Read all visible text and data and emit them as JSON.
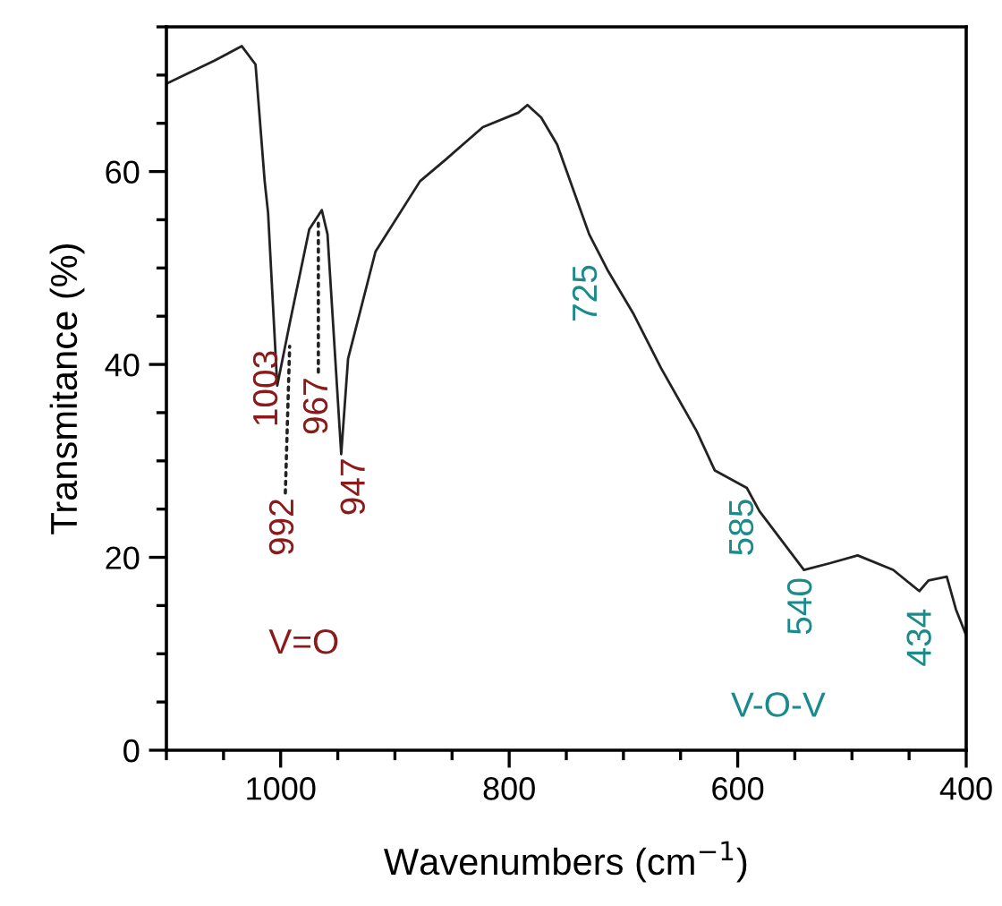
{
  "chart_data": {
    "type": "line",
    "xlabel": "Wavenumbers (cm$^{−1}$)",
    "ylabel": "Transmitance (%)",
    "x": [
      1100,
      1058,
      1034,
      1022,
      1014,
      1011,
      1003,
      992,
      975,
      964,
      959,
      947,
      941,
      917,
      878,
      855,
      823,
      792,
      784,
      772,
      758,
      730,
      714,
      691,
      667,
      636,
      620,
      592,
      581,
      542,
      519,
      495,
      464,
      441,
      433,
      417,
      409,
      400
    ],
    "series": [
      {
        "color": "#222222",
        "values": [
          69.1,
          71.5,
          73.0,
          71.1,
          59.0,
          55.7,
          37.8,
          44.3,
          54.0,
          56.0,
          53.5,
          30.7,
          40.6,
          51.7,
          59.0,
          61.3,
          64.6,
          66.1,
          66.9,
          65.6,
          62.8,
          53.5,
          49.8,
          45.2,
          39.6,
          33.1,
          29.0,
          27.2,
          24.8,
          18.7,
          19.4,
          20.2,
          18.7,
          16.5,
          17.6,
          18.0,
          14.6,
          11.9
        ]
      }
    ],
    "xlim": [
      1100,
      400
    ],
    "ylim": [
      0,
      75
    ],
    "xticks": [
      1000,
      800,
      600,
      400
    ],
    "yticks": [
      0,
      20,
      40,
      60
    ],
    "grid": false,
    "legend": false,
    "marker": "none",
    "line_style": "solid",
    "annotations": [
      {
        "text": "1003",
        "x": 1003,
        "y": 37.8
      },
      {
        "text": "992",
        "x": 992,
        "y": 42.4
      },
      {
        "text": "967",
        "x": 967,
        "y": 55.7
      },
      {
        "text": "947",
        "x": 947,
        "y": 30.7
      },
      "V=O",
      {
        "text": "725",
        "x": 725,
        "y": 52.2
      },
      {
        "text": "585",
        "x": 585,
        "y": 26.9
      },
      {
        "text": "540",
        "x": 540,
        "y": 18.7
      },
      {
        "text": "434",
        "x": 434,
        "y": 16.5
      },
      "V-O-V"
    ]
  }
}
